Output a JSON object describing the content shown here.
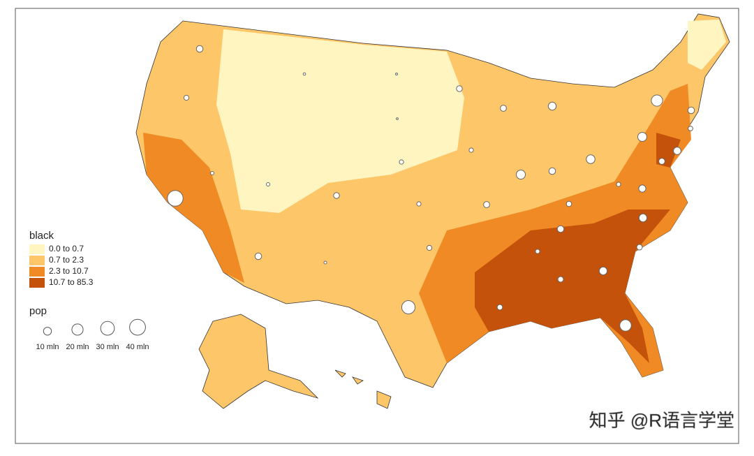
{
  "legend_black": {
    "title": "black",
    "items": [
      {
        "label": "0.0 to 0.7",
        "color": "#fff5c0"
      },
      {
        "label": "0.7 to 2.3",
        "color": "#fdc668"
      },
      {
        "label": "2.3 to 10.7",
        "color": "#f08a24"
      },
      {
        "label": "10.7 to 85.3",
        "color": "#c4520a"
      }
    ]
  },
  "legend_pop": {
    "title": "pop",
    "sizes": [
      {
        "value": 10,
        "label": "10 mln"
      },
      {
        "value": 20,
        "label": "20 mln"
      },
      {
        "value": 30,
        "label": "30 mln"
      },
      {
        "value": 40,
        "label": "40 mln"
      }
    ]
  },
  "bubbles": [
    39,
    28,
    21,
    20,
    13,
    13,
    12,
    10,
    10,
    10,
    9,
    8,
    7,
    7,
    7,
    7,
    7,
    6,
    6,
    6,
    5.5,
    5.5,
    5,
    5,
    4.6,
    4.4,
    4,
    4,
    3,
    3,
    3,
    3,
    2,
    1.3,
    1,
    0.7,
    0.6,
    1.9,
    2.9,
    3.6
  ],
  "watermark": "知乎 @R语言学堂"
}
